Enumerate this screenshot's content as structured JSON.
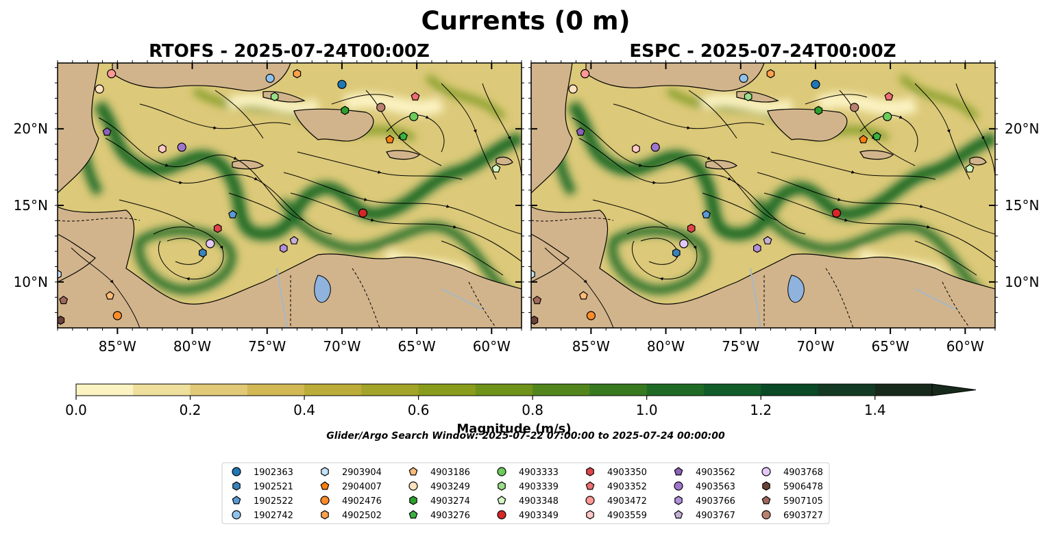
{
  "figure": {
    "title": "Currents (0 m)",
    "search_window": "Glider/Argo Search Window: 2025-07-22 07:00:00 to 2025-07-24 00:00:00"
  },
  "panels": [
    {
      "title": "RTOFS - 2025-07-24T00:00Z"
    },
    {
      "title": "ESPC - 2025-07-24T00:00Z"
    }
  ],
  "map_extent": {
    "lon_min": -89,
    "lon_max": -58,
    "lat_min": 7,
    "lat_max": 24.3
  },
  "lon_ticks": [
    {
      "value": -85,
      "label": "85°W"
    },
    {
      "value": -80,
      "label": "80°W"
    },
    {
      "value": -75,
      "label": "75°W"
    },
    {
      "value": -70,
      "label": "70°W"
    },
    {
      "value": -65,
      "label": "65°W"
    },
    {
      "value": -60,
      "label": "60°W"
    }
  ],
  "lat_ticks": [
    {
      "value": 20,
      "label": "20°N"
    },
    {
      "value": 15,
      "label": "15°N"
    },
    {
      "value": 10,
      "label": "10°N"
    }
  ],
  "colorbar": {
    "label": "Magnitude (m/s)",
    "min": 0.0,
    "max": 1.5,
    "extend": "max",
    "ticks": [
      {
        "value": 0.0,
        "label": "0.0"
      },
      {
        "value": 0.2,
        "label": "0.2"
      },
      {
        "value": 0.4,
        "label": "0.4"
      },
      {
        "value": 0.6,
        "label": "0.6"
      },
      {
        "value": 0.8,
        "label": "0.8"
      },
      {
        "value": 1.0,
        "label": "1.0"
      },
      {
        "value": 1.2,
        "label": "1.2"
      },
      {
        "value": 1.4,
        "label": "1.4"
      }
    ],
    "colors": [
      "#fbf3c2",
      "#efdf9c",
      "#e1c977",
      "#d3b955",
      "#bcac39",
      "#a3a42a",
      "#8a9c1c",
      "#6f921a",
      "#52861d",
      "#37791f",
      "#1f6b25",
      "#105d2a",
      "#0b4a26",
      "#133a22",
      "#17291b"
    ]
  },
  "colors": {
    "land": "#d2b48c",
    "lake": "#8fb3dd",
    "river": "#a4b8c8",
    "ocean_base": "#dcc979",
    "jet": "#1f6b25"
  },
  "legend": [
    {
      "id": "1902363",
      "marker": "circle",
      "color": "#1f77b4"
    },
    {
      "id": "1902521",
      "marker": "hexagon",
      "color": "#3b82b8"
    },
    {
      "id": "1902522",
      "marker": "pentagon",
      "color": "#5b9bd5"
    },
    {
      "id": "1902742",
      "marker": "circle",
      "color": "#8fc2ea"
    },
    {
      "id": "2903904",
      "marker": "hexagon",
      "color": "#c6e3f7"
    },
    {
      "id": "2904007",
      "marker": "pentagon",
      "color": "#ff7f0e"
    },
    {
      "id": "4902476",
      "marker": "circle",
      "color": "#ff8c2a"
    },
    {
      "id": "4902502",
      "marker": "hexagon",
      "color": "#ffa04d"
    },
    {
      "id": "4903186",
      "marker": "pentagon",
      "color": "#ffbb78"
    },
    {
      "id": "4903249",
      "marker": "circle",
      "color": "#ffe1bf"
    },
    {
      "id": "4903274",
      "marker": "hexagon",
      "color": "#2ca02c"
    },
    {
      "id": "4903276",
      "marker": "pentagon",
      "color": "#3cb043"
    },
    {
      "id": "4903333",
      "marker": "circle",
      "color": "#6ccc5a"
    },
    {
      "id": "4903339",
      "marker": "hexagon",
      "color": "#98df8a"
    },
    {
      "id": "4903348",
      "marker": "pentagon",
      "color": "#d4f7c7"
    },
    {
      "id": "4903349",
      "marker": "circle",
      "color": "#d62728"
    },
    {
      "id": "4903350",
      "marker": "hexagon",
      "color": "#e0454a"
    },
    {
      "id": "4903352",
      "marker": "pentagon",
      "color": "#ee6e73"
    },
    {
      "id": "4903472",
      "marker": "circle",
      "color": "#ff9896"
    },
    {
      "id": "4903559",
      "marker": "hexagon",
      "color": "#ffc9c8"
    },
    {
      "id": "4903562",
      "marker": "pentagon",
      "color": "#8c62b8"
    },
    {
      "id": "4903563",
      "marker": "circle",
      "color": "#9e76cc"
    },
    {
      "id": "4903766",
      "marker": "hexagon",
      "color": "#b28fdb"
    },
    {
      "id": "4903767",
      "marker": "pentagon",
      "color": "#c5b0d5"
    },
    {
      "id": "4903768",
      "marker": "circle",
      "color": "#e3c8f7"
    },
    {
      "id": "5906478",
      "marker": "hexagon",
      "color": "#6b4239"
    },
    {
      "id": "5907105",
      "marker": "pentagon",
      "color": "#a0695c"
    },
    {
      "id": "6903727",
      "marker": "circle",
      "color": "#b9816f"
    }
  ],
  "floats": [
    {
      "id": "1902363",
      "lon": -70.0,
      "lat": 22.9
    },
    {
      "id": "1902521",
      "lon": -79.3,
      "lat": 11.9
    },
    {
      "id": "1902522",
      "lon": -77.3,
      "lat": 14.4
    },
    {
      "id": "1902742",
      "lon": -74.8,
      "lat": 23.3
    },
    {
      "id": "2903904",
      "lon": -89.0,
      "lat": 10.5
    },
    {
      "id": "2904007",
      "lon": -66.8,
      "lat": 19.3
    },
    {
      "id": "4902476",
      "lon": -85.0,
      "lat": 7.8
    },
    {
      "id": "4902502",
      "lon": -73.0,
      "lat": 23.6
    },
    {
      "id": "4903186",
      "lon": -85.5,
      "lat": 9.1
    },
    {
      "id": "4903249",
      "lon": -86.2,
      "lat": 22.6
    },
    {
      "id": "4903274",
      "lon": -69.8,
      "lat": 21.2
    },
    {
      "id": "4903276",
      "lon": -65.9,
      "lat": 19.5
    },
    {
      "id": "4903333",
      "lon": -65.2,
      "lat": 20.8
    },
    {
      "id": "4903339",
      "lon": -74.5,
      "lat": 22.1
    },
    {
      "id": "4903348",
      "lon": -59.7,
      "lat": 17.4
    },
    {
      "id": "4903349",
      "lon": -68.6,
      "lat": 14.5
    },
    {
      "id": "4903350",
      "lon": -78.3,
      "lat": 13.5
    },
    {
      "id": "4903352",
      "lon": -65.1,
      "lat": 22.1
    },
    {
      "id": "4903472",
      "lon": -85.4,
      "lat": 23.6
    },
    {
      "id": "4903559",
      "lon": -82.0,
      "lat": 18.7
    },
    {
      "id": "4903562",
      "lon": -85.7,
      "lat": 19.8
    },
    {
      "id": "4903563",
      "lon": -80.7,
      "lat": 18.8
    },
    {
      "id": "4903766",
      "lon": -73.9,
      "lat": 12.2
    },
    {
      "id": "4903767",
      "lon": -73.2,
      "lat": 12.7
    },
    {
      "id": "4903768",
      "lon": -78.8,
      "lat": 12.5
    },
    {
      "id": "5906478",
      "lon": -88.8,
      "lat": 7.5
    },
    {
      "id": "5907105",
      "lon": -88.6,
      "lat": 8.8
    },
    {
      "id": "6903727",
      "lon": -67.4,
      "lat": 21.4
    }
  ]
}
